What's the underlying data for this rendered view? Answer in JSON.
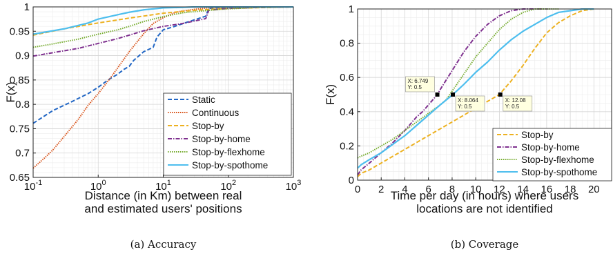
{
  "chart_data": [
    {
      "type": "line",
      "xscale": "log",
      "xlim": [
        0.1,
        1000
      ],
      "ylim": [
        0.65,
        1
      ],
      "yticks": [
        "0.65",
        "0.7",
        "0.75",
        "0.8",
        "0.85",
        "0.9",
        "0.95",
        "1"
      ],
      "ytick_values": [
        0.65,
        0.7,
        0.75,
        0.8,
        0.85,
        0.9,
        0.95,
        1
      ],
      "xtick_exponents": [
        "-1",
        "0",
        "1",
        "2",
        "3"
      ],
      "xtick_base": "10",
      "ylabel": "F(x)",
      "xlabel_lines": [
        "Distance (in Km) between real",
        "and estimated users' positions"
      ],
      "caption": "(a) Accuracy",
      "grid": true,
      "legend_position": "bottom-right",
      "series": [
        {
          "name": "Static",
          "color": "#2166c4",
          "dash": "dashed",
          "x": [
            0.1,
            0.2,
            0.4,
            0.7,
            1.0,
            1.2,
            1.5,
            2.0,
            2.5,
            3.0,
            3.5,
            5.0,
            7.0,
            8.0,
            10,
            15,
            25,
            45,
            50,
            100,
            300,
            1000
          ],
          "y": [
            0.761,
            0.787,
            0.806,
            0.822,
            0.835,
            0.843,
            0.852,
            0.862,
            0.872,
            0.878,
            0.89,
            0.908,
            0.917,
            0.938,
            0.953,
            0.96,
            0.97,
            0.981,
            0.997,
            0.999,
            1.0,
            1.0
          ]
        },
        {
          "name": "Continuous",
          "color": "#d95319",
          "dash": "dotted",
          "x": [
            0.1,
            0.15,
            0.2,
            0.3,
            0.5,
            0.7,
            1.0,
            1.5,
            2.0,
            3.0,
            5.0,
            7.0,
            10,
            15,
            20,
            30,
            50,
            100,
            1000
          ],
          "y": [
            0.669,
            0.69,
            0.706,
            0.734,
            0.77,
            0.798,
            0.822,
            0.852,
            0.875,
            0.908,
            0.945,
            0.966,
            0.978,
            0.988,
            0.992,
            0.995,
            0.998,
            0.999,
            1.0
          ]
        },
        {
          "name": "Stop-by",
          "color": "#edb120",
          "dash": "dashed",
          "x": [
            0.1,
            0.3,
            1.0,
            3.0,
            10,
            30,
            100,
            1000
          ],
          "y": [
            0.942,
            0.955,
            0.967,
            0.977,
            0.987,
            0.993,
            0.997,
            1.0
          ]
        },
        {
          "name": "Stop-by-home",
          "color": "#7e2f8e",
          "dash": "dashdot",
          "x": [
            0.1,
            0.2,
            0.5,
            1.0,
            2.0,
            3.0,
            5.0,
            10,
            20,
            45,
            50,
            100,
            300,
            1000
          ],
          "y": [
            0.899,
            0.906,
            0.915,
            0.925,
            0.935,
            0.942,
            0.951,
            0.96,
            0.966,
            0.976,
            0.993,
            0.997,
            0.999,
            1.0
          ]
        },
        {
          "name": "Stop-by-flexhome",
          "color": "#77ac30",
          "dash": "dotted",
          "x": [
            0.1,
            0.2,
            0.5,
            1.0,
            2.0,
            3.0,
            5.0,
            10,
            20,
            50,
            100,
            300,
            1000
          ],
          "y": [
            0.917,
            0.924,
            0.934,
            0.944,
            0.953,
            0.96,
            0.97,
            0.98,
            0.988,
            0.993,
            0.996,
            0.999,
            1.0
          ]
        },
        {
          "name": "Stop-by-spothome",
          "color": "#4dbeee",
          "dash": "solid",
          "x": [
            0.1,
            0.3,
            0.7,
            1.0,
            2.0,
            3.0,
            5.0,
            10,
            20,
            30,
            100,
            1000
          ],
          "y": [
            0.944,
            0.955,
            0.967,
            0.975,
            0.984,
            0.989,
            0.994,
            0.998,
            0.999,
            1.0,
            1.0,
            1.0
          ]
        }
      ]
    },
    {
      "type": "line",
      "xlim": [
        0,
        21.5
      ],
      "ylim": [
        0,
        1
      ],
      "xticks": [
        "0",
        "2",
        "4",
        "6",
        "8",
        "10",
        "12",
        "14",
        "16",
        "18",
        "20"
      ],
      "xtick_values": [
        0,
        2,
        4,
        6,
        8,
        10,
        12,
        14,
        16,
        18,
        20
      ],
      "yticks": [
        "0",
        "0.2",
        "0.4",
        "0.6",
        "0.8",
        "1"
      ],
      "ytick_values": [
        0,
        0.2,
        0.4,
        0.6,
        0.8,
        1
      ],
      "ylabel": "F(x)",
      "xlabel_lines": [
        "Time per day (in hours) where users",
        "locations are not identified"
      ],
      "caption": "(b) Coverage",
      "grid": true,
      "legend_position": "bottom-right",
      "series": [
        {
          "name": "Stop-by",
          "color": "#edb120",
          "dash": "dashed",
          "x": [
            0,
            0.3,
            1,
            2,
            3,
            4,
            5,
            6,
            7,
            8,
            9,
            10,
            11,
            12,
            12.5,
            13,
            14,
            15,
            16,
            17,
            18,
            19,
            20
          ],
          "y": [
            0.02,
            0.04,
            0.06,
            0.1,
            0.14,
            0.18,
            0.22,
            0.26,
            0.3,
            0.34,
            0.38,
            0.42,
            0.46,
            0.5,
            0.54,
            0.58,
            0.67,
            0.77,
            0.86,
            0.92,
            0.96,
            0.99,
            1.0
          ]
        },
        {
          "name": "Stop-by-home",
          "color": "#7e2f8e",
          "dash": "dashdot",
          "x": [
            0,
            0.3,
            1,
            2,
            3,
            4,
            5,
            5.5,
            6,
            6.749,
            7,
            8,
            9,
            10,
            11,
            12,
            13,
            14,
            15,
            16
          ],
          "y": [
            0.03,
            0.06,
            0.1,
            0.16,
            0.22,
            0.29,
            0.37,
            0.4,
            0.44,
            0.5,
            0.53,
            0.64,
            0.75,
            0.84,
            0.91,
            0.96,
            0.99,
            1.0,
            1.0,
            1.0
          ]
        },
        {
          "name": "Stop-by-flexhome",
          "color": "#77ac30",
          "dash": "dotted",
          "x": [
            0,
            0.3,
            1,
            2,
            3,
            4,
            5,
            6,
            7,
            7.5,
            8,
            9,
            10,
            11,
            12,
            13,
            14,
            15,
            16,
            17
          ],
          "y": [
            0.13,
            0.14,
            0.16,
            0.2,
            0.24,
            0.29,
            0.34,
            0.39,
            0.44,
            0.47,
            0.52,
            0.62,
            0.72,
            0.8,
            0.88,
            0.94,
            0.98,
            1.0,
            1.0,
            1.0
          ]
        },
        {
          "name": "Stop-by-spothome",
          "color": "#4dbeee",
          "dash": "solid",
          "x": [
            0,
            0.3,
            1,
            2,
            3,
            4,
            5,
            6,
            7,
            8.064,
            9,
            10,
            11,
            12,
            13,
            14,
            15,
            16,
            17,
            18,
            19,
            20
          ],
          "y": [
            0.07,
            0.09,
            0.12,
            0.16,
            0.21,
            0.26,
            0.32,
            0.38,
            0.44,
            0.5,
            0.56,
            0.63,
            0.69,
            0.76,
            0.82,
            0.87,
            0.91,
            0.95,
            0.98,
            0.99,
            1.0,
            1.0
          ]
        }
      ],
      "datatips": [
        {
          "x": 6.749,
          "y": 0.5,
          "lines": [
            "X: 6.749",
            "Y: 0.5"
          ],
          "side": "left"
        },
        {
          "x": 8.064,
          "y": 0.5,
          "lines": [
            "X: 8.064",
            "Y: 0.5"
          ],
          "side": "right"
        },
        {
          "x": 12.08,
          "y": 0.5,
          "lines": [
            "X: 12.08",
            "Y: 0.5"
          ],
          "side": "right"
        }
      ]
    }
  ]
}
